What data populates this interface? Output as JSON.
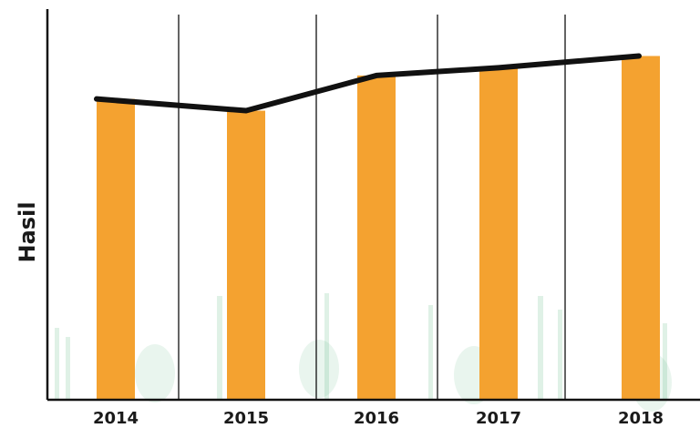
{
  "chart_data": {
    "type": "bar",
    "categories": [
      "2014",
      "2015",
      "2016",
      "2017",
      "2018"
    ],
    "series": [
      {
        "values": [
          77,
          74,
          83,
          85,
          88
        ]
      }
    ],
    "line_overlay": {
      "values": [
        77,
        74,
        83,
        85,
        88
      ]
    },
    "title": "",
    "xlabel": "",
    "ylabel": "Hasil",
    "ylim": [
      0,
      100
    ],
    "grid": {
      "x": true,
      "y": false
    },
    "legend": "none",
    "colors": {
      "bar": "#f4a230",
      "line": "#111111",
      "axis": "#111111",
      "watermark": "#4caf73"
    }
  }
}
